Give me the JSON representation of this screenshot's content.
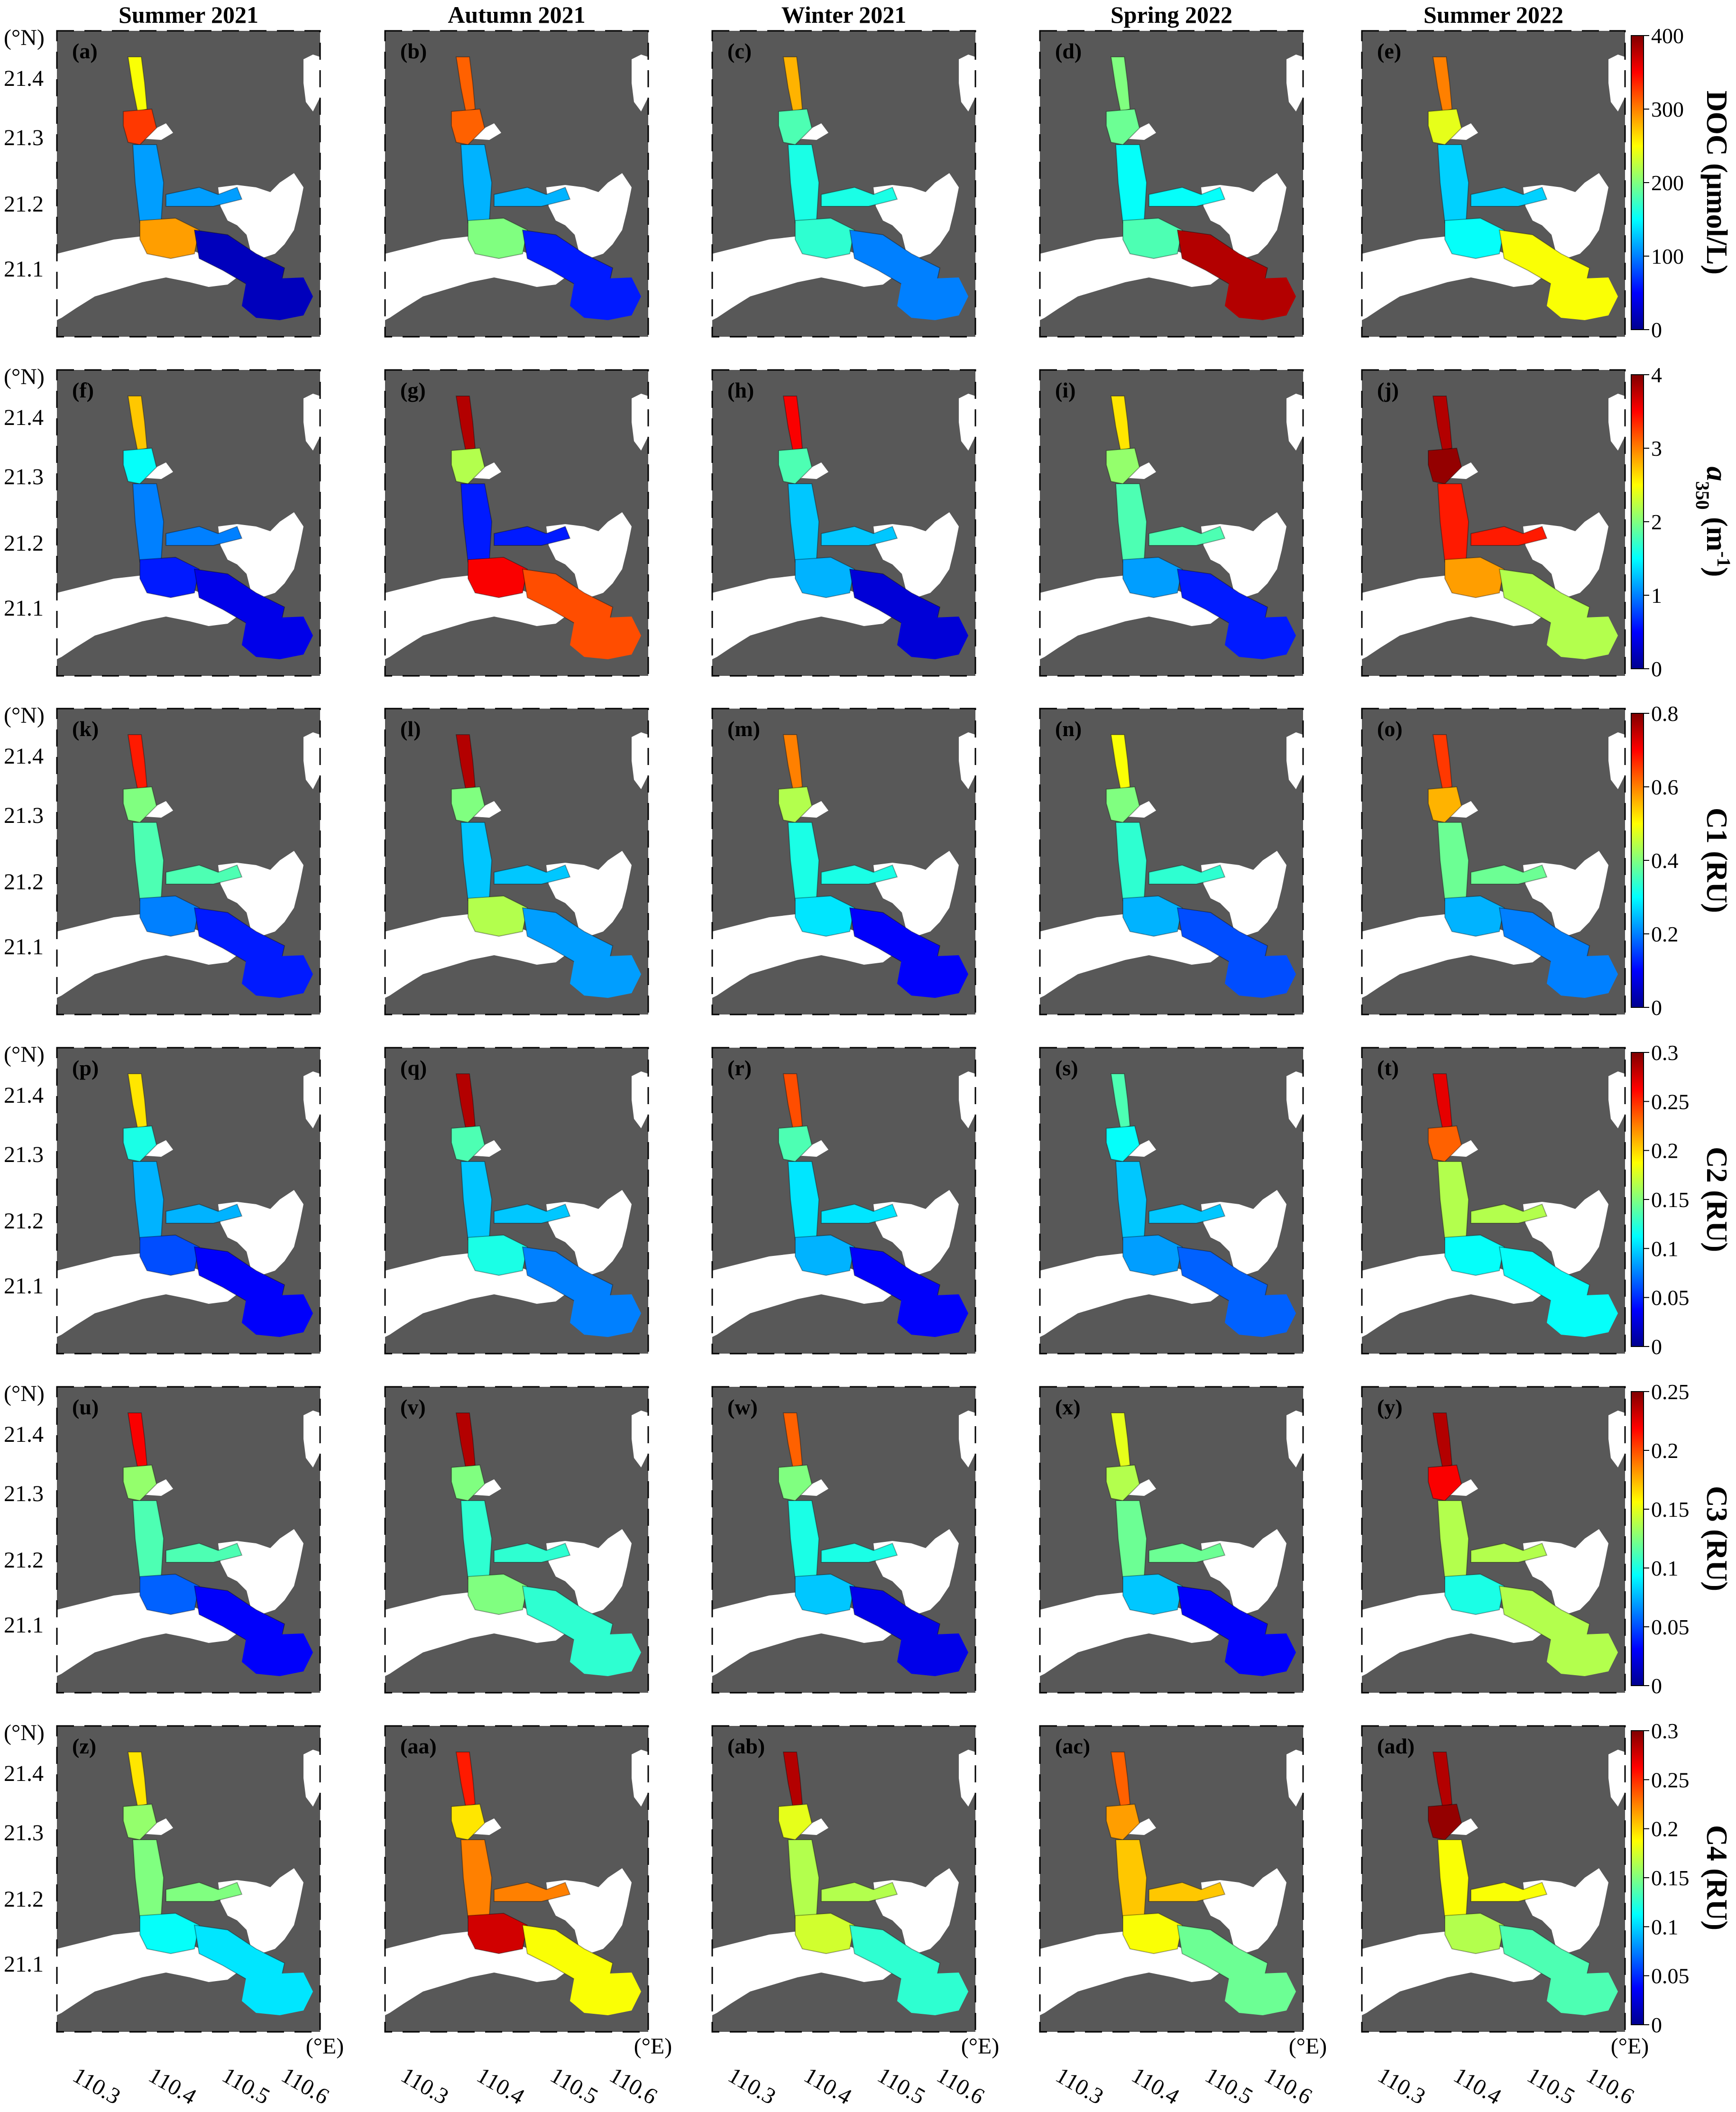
{
  "seasons": [
    "Summer 2021",
    "Autumn 2021",
    "Winter 2021",
    "Spring 2022",
    "Summer 2022"
  ],
  "lat_unit": "(°N)",
  "lon_unit": "(°E)",
  "lat_ticks": [
    "21.4",
    "21.3",
    "21.2",
    "21.1"
  ],
  "lon_ticks": [
    "110.3",
    "110.4",
    "110.5",
    "110.6"
  ],
  "rows": [
    {
      "variable": "DOC (μmol/L)",
      "var_main": "DOC (μmol/L)",
      "var_sub": "",
      "var_tail": "",
      "var_sup": "",
      "var_end": "",
      "colorbar_ticks": [
        "400",
        "300",
        "200",
        "100",
        "0"
      ],
      "range": [
        0,
        400
      ],
      "panel_labels": [
        "(a)",
        "(b)",
        "(c)",
        "(d)",
        "(e)"
      ],
      "levels": [
        [
          0.62,
          0.82,
          0.28,
          0.72,
          0.05
        ],
        [
          0.78,
          0.78,
          0.3,
          0.5,
          0.15
        ],
        [
          0.7,
          0.45,
          0.4,
          0.42,
          0.25
        ],
        [
          0.5,
          0.48,
          0.38,
          0.45,
          0.95
        ],
        [
          0.75,
          0.6,
          0.33,
          0.38,
          0.62
        ]
      ]
    },
    {
      "variable": "a350 (m-1)",
      "var_main": "a",
      "var_sub": "350",
      "var_tail": " (m",
      "var_sup": "-1",
      "var_end": ")",
      "colorbar_ticks": [
        "4",
        "3",
        "2",
        "1",
        "0"
      ],
      "range": [
        0,
        4
      ],
      "panel_labels": [
        "(f)",
        "(g)",
        "(h)",
        "(i)",
        "(j)"
      ],
      "levels": [
        [
          0.68,
          0.38,
          0.25,
          0.15,
          0.1
        ],
        [
          0.95,
          0.55,
          0.15,
          0.88,
          0.8
        ],
        [
          0.88,
          0.45,
          0.32,
          0.3,
          0.08
        ],
        [
          0.65,
          0.52,
          0.45,
          0.28,
          0.15
        ],
        [
          0.95,
          0.98,
          0.85,
          0.72,
          0.55
        ]
      ]
    },
    {
      "variable": "C1 (RU)",
      "var_main": "C1 (RU)",
      "var_sub": "",
      "var_tail": "",
      "var_sup": "",
      "var_end": "",
      "colorbar_ticks": [
        "0.8",
        "0.6",
        "0.4",
        "0.2",
        "0"
      ],
      "range": [
        0,
        0.8
      ],
      "panel_labels": [
        "(k)",
        "(l)",
        "(m)",
        "(n)",
        "(o)"
      ],
      "levels": [
        [
          0.85,
          0.5,
          0.45,
          0.25,
          0.15
        ],
        [
          0.95,
          0.5,
          0.32,
          0.55,
          0.28
        ],
        [
          0.75,
          0.55,
          0.4,
          0.35,
          0.12
        ],
        [
          0.62,
          0.5,
          0.42,
          0.3,
          0.2
        ],
        [
          0.82,
          0.7,
          0.48,
          0.3,
          0.25
        ]
      ]
    },
    {
      "variable": "C2 (RU)",
      "var_main": "C2 (RU)",
      "var_sub": "",
      "var_tail": "",
      "var_sup": "",
      "var_end": "",
      "colorbar_ticks": [
        "0.3",
        "0.25",
        "0.2",
        "0.15",
        "0.1",
        "0.05",
        "0"
      ],
      "range": [
        0,
        0.3
      ],
      "panel_labels": [
        "(p)",
        "(q)",
        "(r)",
        "(s)",
        "(t)"
      ],
      "levels": [
        [
          0.65,
          0.4,
          0.3,
          0.2,
          0.12
        ],
        [
          0.95,
          0.45,
          0.32,
          0.4,
          0.25
        ],
        [
          0.8,
          0.45,
          0.35,
          0.3,
          0.12
        ],
        [
          0.45,
          0.38,
          0.32,
          0.28,
          0.22
        ],
        [
          0.9,
          0.78,
          0.55,
          0.38,
          0.38
        ]
      ]
    },
    {
      "variable": "C3 (RU)",
      "var_main": "C3 (RU)",
      "var_sub": "",
      "var_tail": "",
      "var_sup": "",
      "var_end": "",
      "colorbar_ticks": [
        "0.25",
        "0.2",
        "0.15",
        "0.1",
        "0.05",
        "0"
      ],
      "range": [
        0,
        0.25
      ],
      "panel_labels": [
        "(u)",
        "(v)",
        "(w)",
        "(x)",
        "(y)"
      ],
      "levels": [
        [
          0.88,
          0.52,
          0.45,
          0.22,
          0.12
        ],
        [
          0.95,
          0.5,
          0.42,
          0.5,
          0.42
        ],
        [
          0.78,
          0.5,
          0.4,
          0.32,
          0.1
        ],
        [
          0.6,
          0.55,
          0.48,
          0.32,
          0.12
        ],
        [
          0.95,
          0.88,
          0.55,
          0.4,
          0.55
        ]
      ]
    },
    {
      "variable": "C4 (RU)",
      "var_main": "C4 (RU)",
      "var_sub": "",
      "var_tail": "",
      "var_sup": "",
      "var_end": "",
      "colorbar_ticks": [
        "0.3",
        "0.25",
        "0.2",
        "0.15",
        "0.1",
        "0.05",
        "0"
      ],
      "range": [
        0,
        0.3
      ],
      "panel_labels": [
        "(z)",
        "(aa)",
        "(ab)",
        "(ac)",
        "(ad)"
      ],
      "levels": [
        [
          0.65,
          0.52,
          0.5,
          0.38,
          0.35
        ],
        [
          0.85,
          0.65,
          0.75,
          0.92,
          0.62
        ],
        [
          0.95,
          0.6,
          0.55,
          0.58,
          0.42
        ],
        [
          0.78,
          0.72,
          0.68,
          0.62,
          0.48
        ],
        [
          0.95,
          0.98,
          0.62,
          0.55,
          0.45
        ]
      ]
    }
  ],
  "colors": {
    "land": "#585858",
    "background": "#ffffff",
    "colormap": [
      "#00008f",
      "#0000ff",
      "#0080ff",
      "#00ffff",
      "#80ff80",
      "#ffff00",
      "#ff8000",
      "#ff0000",
      "#800000"
    ]
  }
}
